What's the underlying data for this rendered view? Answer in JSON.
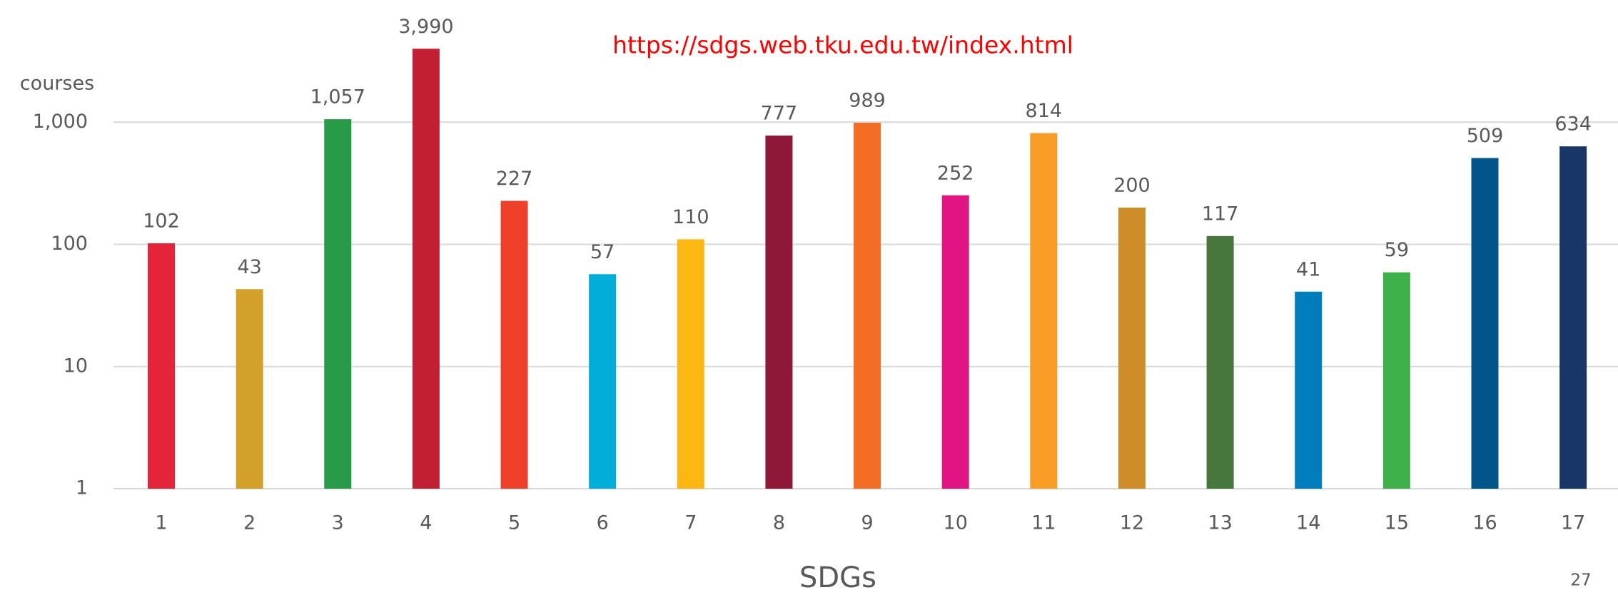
{
  "chart_data": {
    "type": "bar",
    "annotation": "https://sdgs.web.tku.edu.tw/index.html",
    "y_label": "courses",
    "x_label": "SDGs",
    "page_number": "27",
    "categories": [
      "1",
      "2",
      "3",
      "4",
      "5",
      "6",
      "7",
      "8",
      "9",
      "10",
      "11",
      "12",
      "13",
      "14",
      "15",
      "16",
      "17"
    ],
    "values": [
      102,
      43,
      1057,
      3990,
      227,
      57,
      110,
      777,
      989,
      252,
      814,
      200,
      117,
      41,
      59,
      509,
      634
    ],
    "value_labels": [
      "102",
      "43",
      "1,057",
      "3,990",
      "227",
      "57",
      "110",
      "777",
      "989",
      "252",
      "814",
      "200",
      "117",
      "41",
      "59",
      "509",
      "634"
    ],
    "colors": [
      "#e5243b",
      "#d3a029",
      "#279b48",
      "#c31f33",
      "#ef402b",
      "#00aed9",
      "#fdb713",
      "#8f1838",
      "#f36d25",
      "#e11484",
      "#f99d26",
      "#cf8d2a",
      "#48773e",
      "#007dbc",
      "#3eb049",
      "#02558b",
      "#183668"
    ],
    "log_scale": true,
    "ylim": [
      1,
      10000
    ],
    "yticks": [
      1,
      10,
      100,
      {
        "value": 1000,
        "label": "1,000"
      }
    ],
    "grid": true
  }
}
